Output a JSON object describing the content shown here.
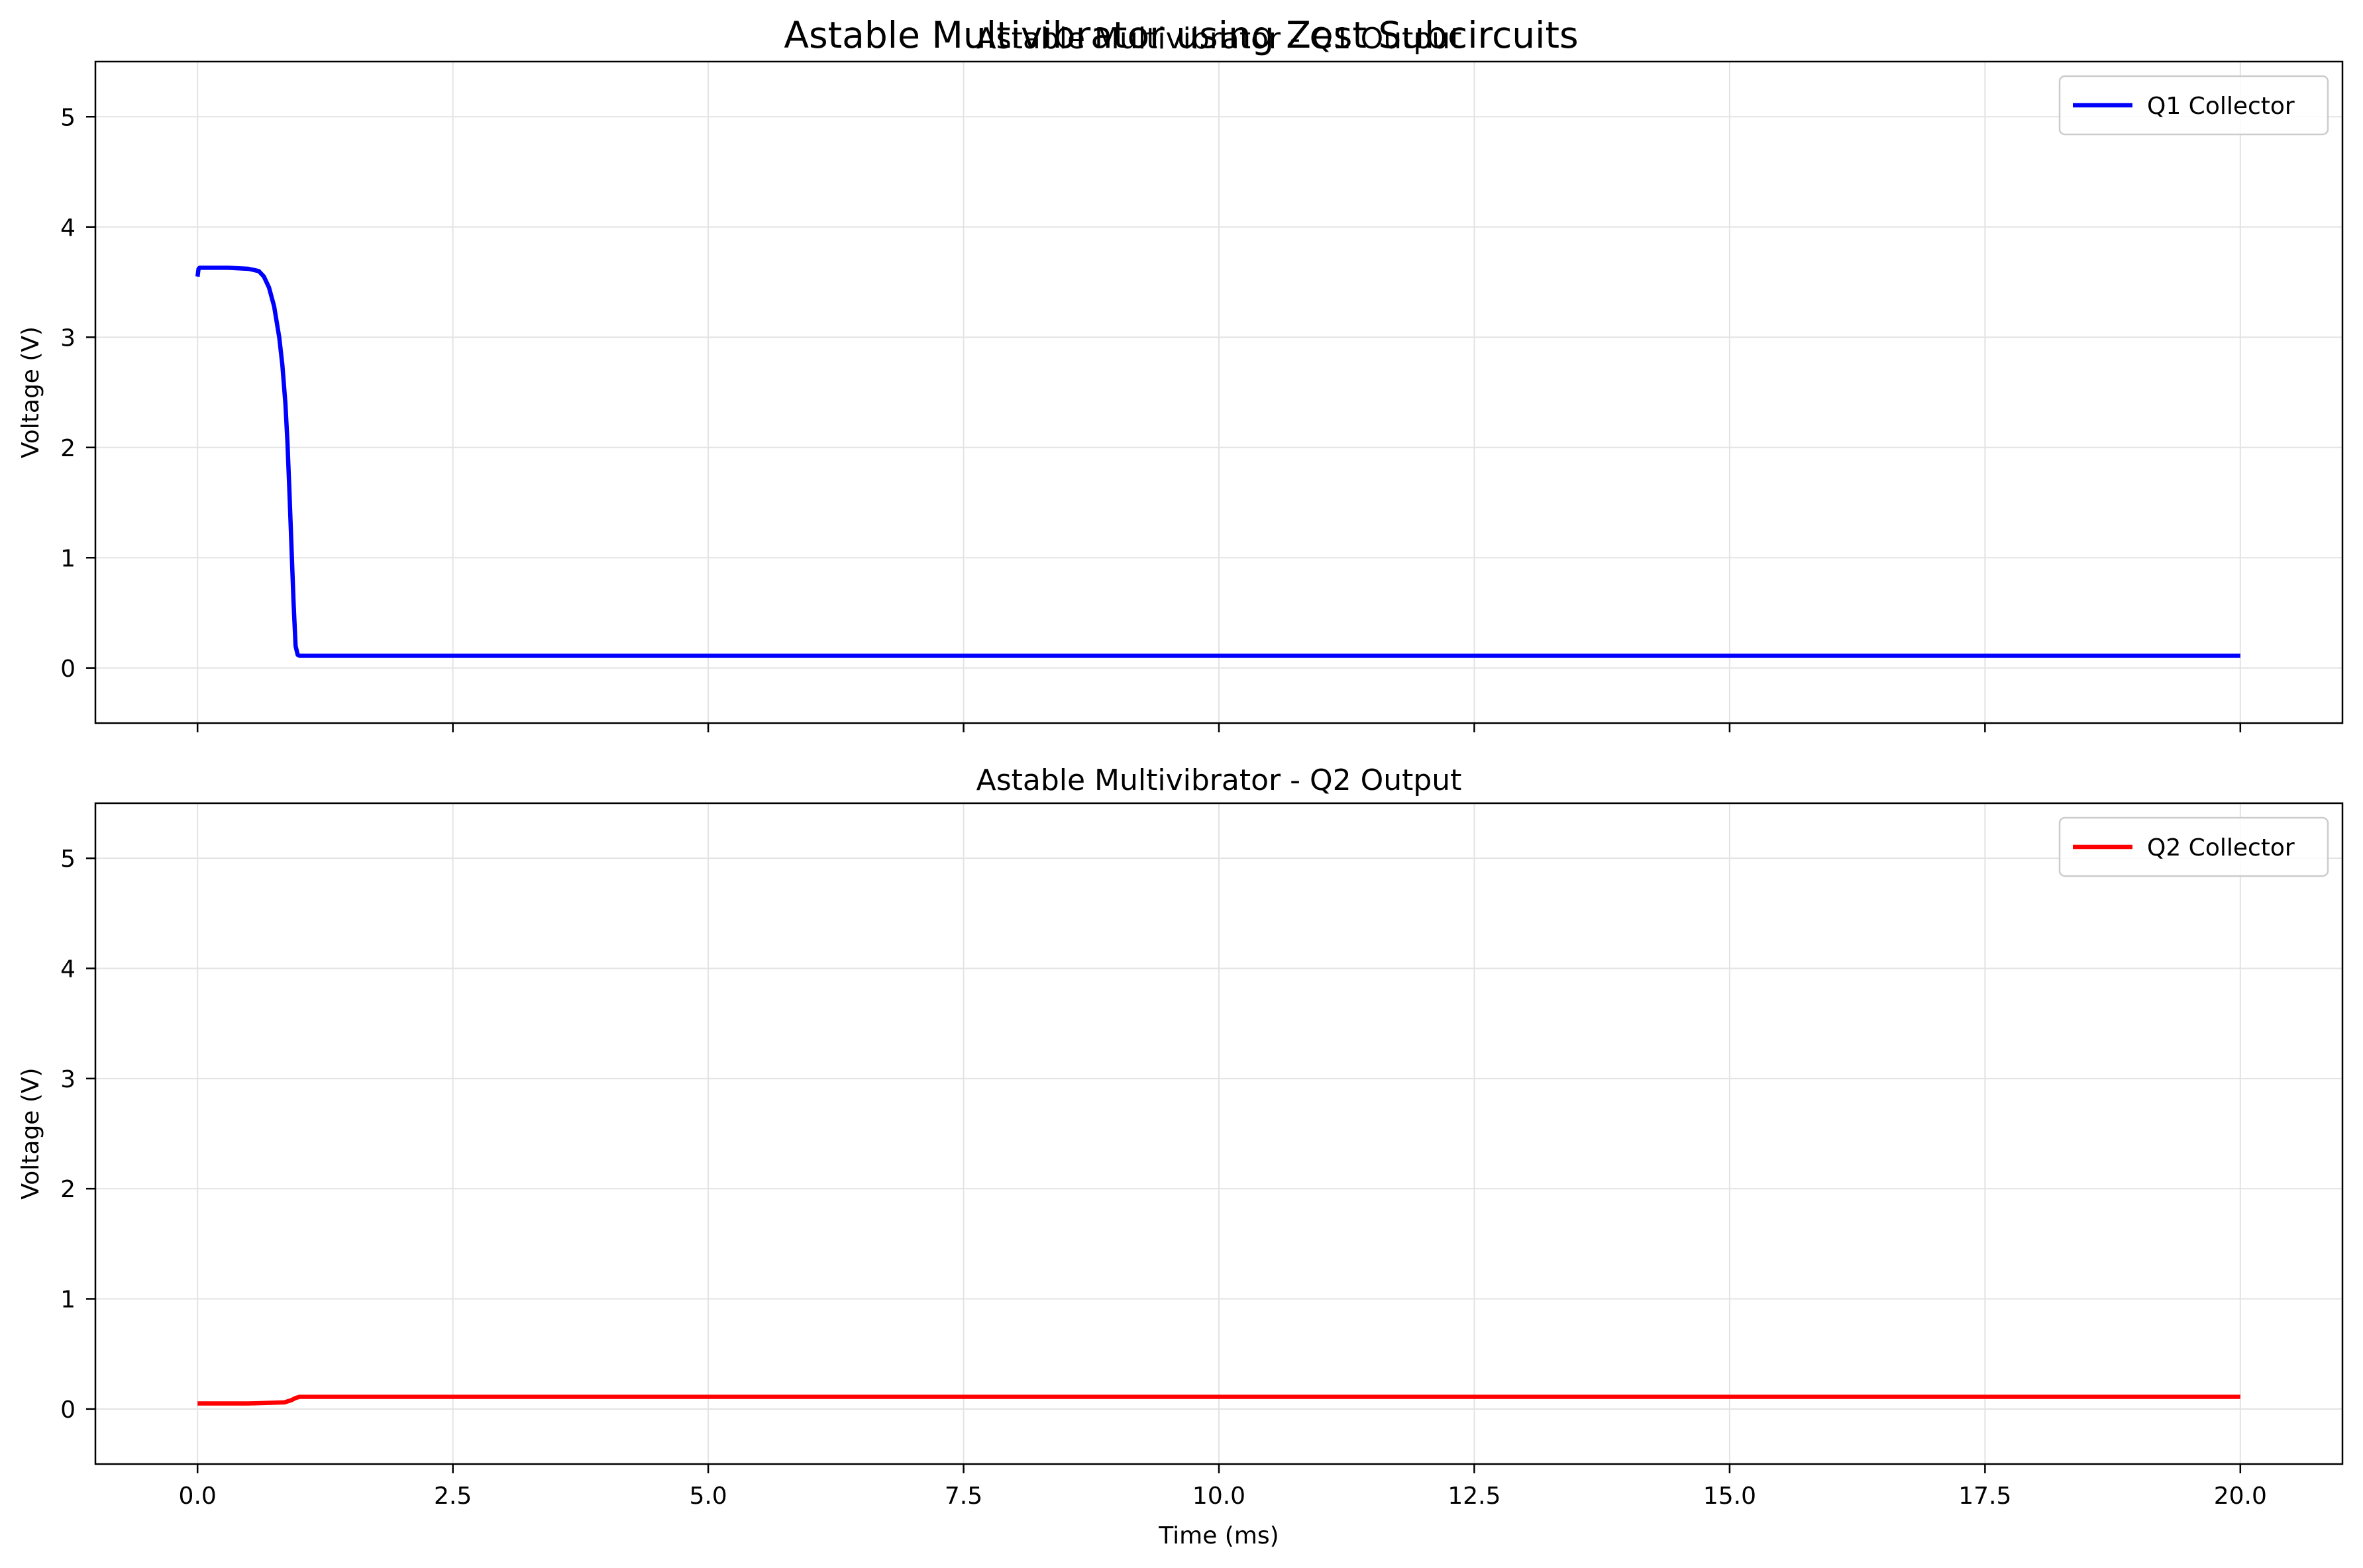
{
  "figure": {
    "suptitle": "Astable Multivibrator using Zest Subcircuits"
  },
  "colors": {
    "q1": "#0000ff",
    "q2": "#ff0000",
    "grid": "#e3e3e3",
    "axes": "#000000"
  },
  "chart_data": [
    {
      "type": "line",
      "title": "Astable Multivibrator - Q1 Output",
      "xlabel": "",
      "ylabel": "Voltage (V)",
      "xlim": [
        -1.0,
        21.0
      ],
      "ylim": [
        -0.5,
        5.5
      ],
      "xticks": [
        0.0,
        2.5,
        5.0,
        7.5,
        10.0,
        12.5,
        15.0,
        17.5,
        20.0
      ],
      "xtick_labels_visible": false,
      "yticks": [
        0,
        1,
        2,
        3,
        4,
        5
      ],
      "grid": true,
      "legend": "upper right",
      "series": [
        {
          "name": "Q1 Collector",
          "color": "#0000ff",
          "x": [
            0.0,
            0.01,
            0.02,
            0.1,
            0.3,
            0.5,
            0.6,
            0.65,
            0.7,
            0.75,
            0.8,
            0.83,
            0.86,
            0.88,
            0.9,
            0.92,
            0.94,
            0.96,
            0.98,
            1.0,
            2.0,
            5.0,
            10.0,
            15.0,
            20.0
          ],
          "y": [
            3.55,
            3.62,
            3.63,
            3.63,
            3.63,
            3.62,
            3.6,
            3.55,
            3.45,
            3.28,
            3.0,
            2.75,
            2.4,
            2.05,
            1.6,
            1.1,
            0.6,
            0.2,
            0.12,
            0.11,
            0.11,
            0.11,
            0.11,
            0.11,
            0.11
          ]
        }
      ]
    },
    {
      "type": "line",
      "title": "Astable Multivibrator - Q2 Output",
      "xlabel": "Time (ms)",
      "ylabel": "Voltage (V)",
      "xlim": [
        -1.0,
        21.0
      ],
      "ylim": [
        -0.5,
        5.5
      ],
      "xticks": [
        0.0,
        2.5,
        5.0,
        7.5,
        10.0,
        12.5,
        15.0,
        17.5,
        20.0
      ],
      "xtick_labels": [
        "0.0",
        "2.5",
        "5.0",
        "7.5",
        "10.0",
        "12.5",
        "15.0",
        "17.5",
        "20.0"
      ],
      "xtick_labels_visible": true,
      "yticks": [
        0,
        1,
        2,
        3,
        4,
        5
      ],
      "grid": true,
      "legend": "upper right",
      "series": [
        {
          "name": "Q2 Collector",
          "color": "#ff0000",
          "x": [
            0.0,
            0.5,
            0.85,
            0.92,
            0.96,
            1.0,
            1.05,
            2.0,
            5.0,
            10.0,
            15.0,
            20.0
          ],
          "y": [
            0.05,
            0.05,
            0.06,
            0.08,
            0.1,
            0.11,
            0.11,
            0.11,
            0.11,
            0.11,
            0.11,
            0.11
          ]
        }
      ]
    }
  ]
}
